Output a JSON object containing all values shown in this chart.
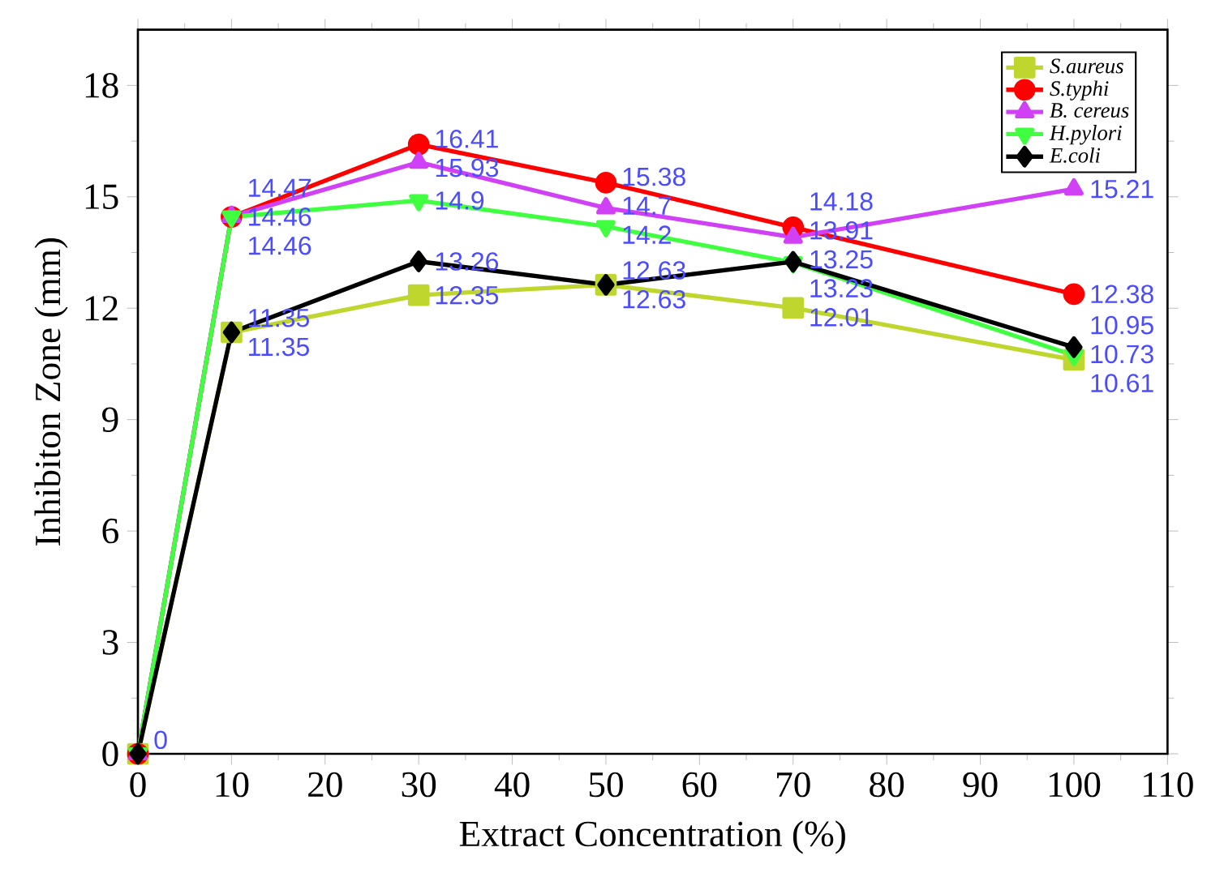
{
  "chart_data": {
    "type": "line",
    "xlabel": "Extract Concentration (%)",
    "ylabel": "Inhibiton Zone (mm)",
    "x": [
      0,
      10,
      30,
      50,
      70,
      100
    ],
    "series": [
      {
        "name": "S.aureus",
        "color": "#bfd62e",
        "marker": "square",
        "values": [
          0,
          11.35,
          12.35,
          12.63,
          12.01,
          10.61
        ],
        "value_labels": [
          null,
          "11.35",
          "12.35",
          "12.63",
          "12.01",
          "10.61"
        ]
      },
      {
        "name": "S.typhi",
        "color": "#ff0000",
        "marker": "circle",
        "values": [
          0,
          14.46,
          16.41,
          15.38,
          14.18,
          12.38
        ],
        "value_labels": [
          null,
          "14.46",
          "16.41",
          "15.38",
          "14.18",
          "12.38"
        ]
      },
      {
        "name": "B. cereus",
        "color": "#d040f5",
        "marker": "triangle",
        "values": [
          0,
          14.47,
          15.93,
          14.7,
          13.91,
          15.21
        ],
        "value_labels": [
          null,
          "14.47",
          "15.93",
          "14.7",
          "13.91",
          "15.21"
        ]
      },
      {
        "name": "H.pylori",
        "color": "#40ff40",
        "marker": "triangle down",
        "values": [
          0,
          14.46,
          14.9,
          14.2,
          13.23,
          10.73
        ],
        "value_labels": [
          null,
          "14.46",
          "14.9",
          "14.2",
          "13.23",
          "10.73"
        ]
      },
      {
        "name": "E.coli",
        "color": "#000000",
        "marker": "diamond",
        "values": [
          0,
          11.35,
          13.26,
          12.63,
          13.25,
          10.95
        ],
        "value_labels": [
          "0",
          "11.35",
          "13.26",
          "12.63",
          "13.25",
          "10.95"
        ]
      }
    ],
    "xlim": [
      0,
      110
    ],
    "xticks": [
      0,
      10,
      20,
      30,
      40,
      50,
      60,
      70,
      80,
      90,
      100,
      110
    ],
    "ylim": [
      0,
      19.5
    ],
    "yticks": [
      0,
      3,
      6,
      9,
      12,
      15,
      18
    ],
    "legend": "top right",
    "line_style": "solid"
  }
}
